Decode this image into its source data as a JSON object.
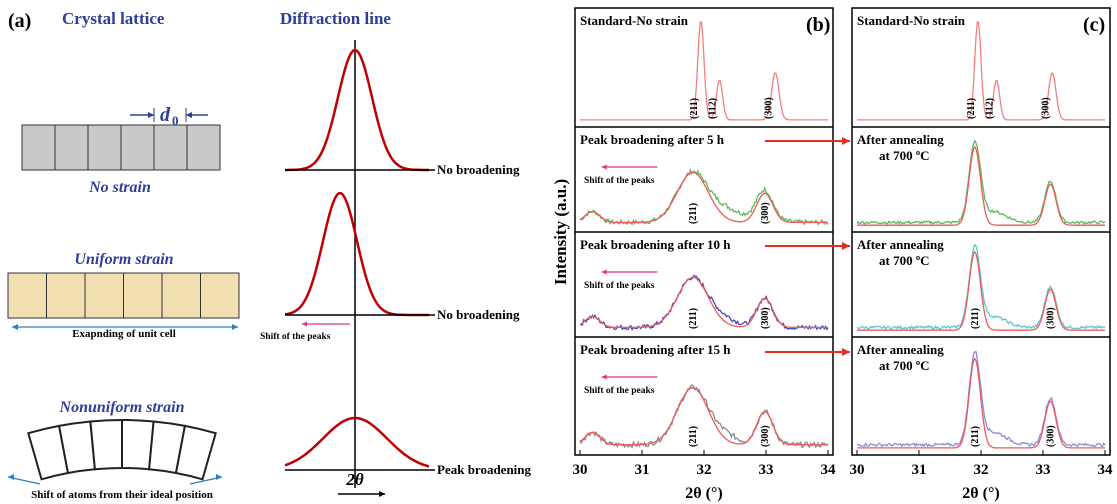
{
  "panel_a": {
    "label": "(a)",
    "lattice_title": "Crystal lattice",
    "diffraction_title": "Diffraction line",
    "d_symbol": "d",
    "d_subscript": "0",
    "no_strain": "No strain",
    "uniform_strain": "Uniform strain",
    "expanding_note": "Exapnding of unit cell",
    "nonuniform_strain": "Nonuniform strain",
    "shift_note": "Shift of atoms from their ideal position",
    "line_labels": [
      "No broadening",
      "No broadening",
      "Peak broadening"
    ],
    "peak_shift": "Shift of the peaks",
    "x_label": "2θ"
  },
  "panel_b": {
    "label": "(b)",
    "y_axis_label": "Intensity (a.u.)",
    "x_axis_label": "2θ (°)",
    "x_ticks": [
      "30",
      "31",
      "32",
      "33",
      "34"
    ],
    "subplots": [
      {
        "title": "Standard-No strain",
        "peaks": [
          "(211)",
          "(112)",
          "(300)"
        ]
      },
      {
        "title": "Peak broadening after 5 h",
        "shift": "Shift of the peaks",
        "peaks": [
          "(211)",
          "(300)"
        ]
      },
      {
        "title": "Peak broadening after 10 h",
        "shift": "Shift of the peaks",
        "peaks": [
          "(211)",
          "(300)"
        ]
      },
      {
        "title": "Peak broadening after 15 h",
        "shift": "Shift of the peaks",
        "peaks": [
          "(211)",
          "(300)"
        ]
      }
    ]
  },
  "panel_c": {
    "label": "(c)",
    "x_axis_label": "2θ (°)",
    "x_ticks": [
      "30",
      "31",
      "32",
      "33",
      "34"
    ],
    "subplots": [
      {
        "title": "Standard-No strain",
        "peaks": [
          "(211)",
          "(112)",
          "(300)"
        ]
      },
      {
        "title": "After annealing",
        "title2": "at 700 ºC",
        "peaks": []
      },
      {
        "title": "After annealing",
        "title2": "at 700 ºC",
        "peaks": [
          "(211)",
          "(300)"
        ]
      },
      {
        "title": "After annealing",
        "title2": "at 700 ºC",
        "peaks": [
          "(211)",
          "(300)"
        ]
      }
    ]
  }
}
